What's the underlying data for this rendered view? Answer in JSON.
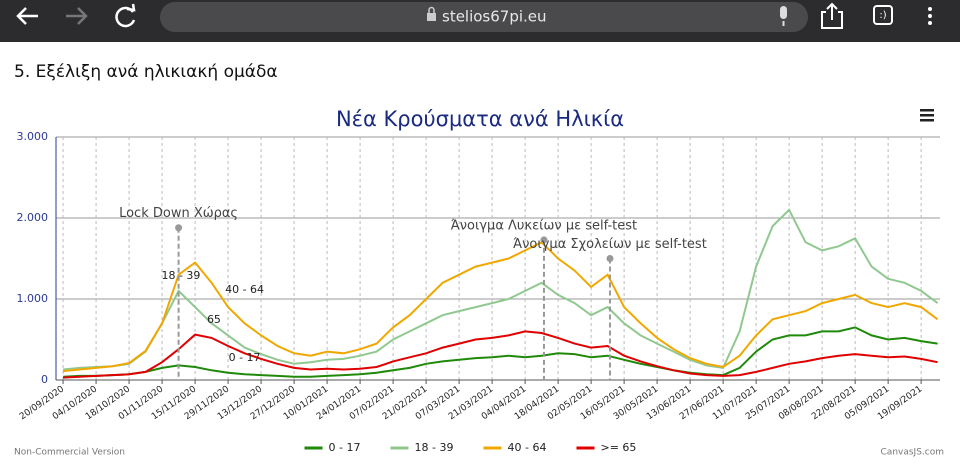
{
  "browser": {
    "url": "stelios67pi.eu"
  },
  "section_heading": "5. Εξέλιξη ανά ηλικιακή ομάδα",
  "chart_data": {
    "type": "line",
    "title": "Νέα Κρούσματα ανά Ηλικία",
    "x": [
      "20/09/2020",
      "27/09/2020",
      "04/10/2020",
      "11/10/2020",
      "18/10/2020",
      "25/10/2020",
      "01/11/2020",
      "08/11/2020",
      "15/11/2020",
      "22/11/2020",
      "29/11/2020",
      "06/12/2020",
      "13/12/2020",
      "20/12/2020",
      "27/12/2020",
      "03/01/2021",
      "10/01/2021",
      "17/01/2021",
      "24/01/2021",
      "31/01/2021",
      "07/02/2021",
      "14/02/2021",
      "21/02/2021",
      "28/02/2021",
      "07/03/2021",
      "14/03/2021",
      "21/03/2021",
      "28/03/2021",
      "04/04/2021",
      "11/04/2021",
      "18/04/2021",
      "25/04/2021",
      "02/05/2021",
      "09/05/2021",
      "16/05/2021",
      "23/05/2021",
      "30/05/2021",
      "06/06/2021",
      "13/06/2021",
      "20/06/2021",
      "27/06/2021",
      "04/07/2021",
      "11/07/2021",
      "18/07/2021",
      "25/07/2021",
      "01/08/2021",
      "08/08/2021",
      "15/08/2021",
      "22/08/2021",
      "29/08/2021",
      "05/09/2021",
      "12/09/2021",
      "19/09/2021",
      "26/09/2021"
    ],
    "series": [
      {
        "name": "0 - 17",
        "color": "#1f8a0a",
        "values": [
          40,
          50,
          50,
          60,
          70,
          100,
          150,
          180,
          160,
          120,
          90,
          70,
          60,
          50,
          40,
          40,
          50,
          60,
          70,
          90,
          120,
          150,
          200,
          230,
          250,
          270,
          280,
          300,
          280,
          300,
          330,
          320,
          280,
          300,
          250,
          200,
          160,
          120,
          90,
          70,
          60,
          150,
          350,
          500,
          550,
          550,
          600,
          600,
          650,
          550,
          500,
          520,
          480,
          450
        ]
      },
      {
        "name": "18 - 39",
        "color": "#90c890",
        "values": [
          130,
          150,
          160,
          170,
          200,
          350,
          700,
          1100,
          900,
          700,
          550,
          400,
          320,
          250,
          200,
          220,
          250,
          260,
          300,
          350,
          500,
          600,
          700,
          800,
          850,
          900,
          950,
          1000,
          1100,
          1200,
          1050,
          950,
          800,
          900,
          700,
          550,
          450,
          350,
          250,
          180,
          150,
          600,
          1400,
          1900,
          2100,
          1700,
          1600,
          1650,
          1750,
          1400,
          1250,
          1200,
          1100,
          950
        ]
      },
      {
        "name": "40 - 64",
        "color": "#f0a800",
        "values": [
          110,
          130,
          150,
          170,
          210,
          360,
          700,
          1300,
          1450,
          1200,
          900,
          700,
          550,
          420,
          330,
          300,
          350,
          330,
          380,
          450,
          650,
          800,
          1000,
          1200,
          1300,
          1400,
          1450,
          1500,
          1600,
          1700,
          1500,
          1350,
          1150,
          1300,
          900,
          700,
          520,
          380,
          270,
          200,
          160,
          300,
          550,
          750,
          800,
          850,
          950,
          1000,
          1050,
          950,
          900,
          950,
          900,
          750
        ]
      },
      {
        "name": ">= 65",
        "color": "#e00000",
        "values": [
          30,
          40,
          50,
          60,
          70,
          100,
          220,
          380,
          560,
          520,
          420,
          330,
          260,
          200,
          150,
          130,
          140,
          130,
          140,
          160,
          230,
          280,
          330,
          400,
          450,
          500,
          520,
          550,
          600,
          580,
          520,
          450,
          400,
          420,
          300,
          230,
          170,
          120,
          80,
          60,
          50,
          60,
          100,
          150,
          200,
          230,
          270,
          300,
          320,
          300,
          280,
          290,
          260,
          220
        ]
      }
    ],
    "xlim": [
      "17/09/2020",
      "27/09/2021"
    ],
    "xticks": [
      "20/09/2020",
      "04/10/2020",
      "18/10/2020",
      "01/11/2020",
      "15/11/2020",
      "29/11/2020",
      "13/12/2020",
      "27/12/2020",
      "10/01/2021",
      "24/01/2021",
      "07/02/2021",
      "21/02/2021",
      "07/03/2021",
      "21/03/2021",
      "04/04/2021",
      "18/04/2021",
      "02/05/2021",
      "16/05/2021",
      "30/05/2021",
      "13/06/2021",
      "27/06/2021",
      "11/07/2021",
      "25/07/2021",
      "08/08/2021",
      "22/08/2021",
      "05/09/2021",
      "19/09/2021"
    ],
    "ylim": [
      0,
      3000
    ],
    "yticks": [
      0,
      {
        "value": 1000,
        "label": "1.000"
      },
      {
        "value": 2000,
        "label": "2.000"
      },
      {
        "value": 3000,
        "label": "3.000"
      }
    ],
    "grid": true,
    "annotations": [
      {
        "label": "Lock Down Χώρας",
        "x": "08/11/2020",
        "y": 1880
      },
      {
        "label": "Άνοιγμα Λυκείων με self-test",
        "x": "12/04/2021",
        "y": 1730
      },
      {
        "label": "Άνοιγμα Σχολείων με self-test",
        "x": "10/05/2021",
        "y": 1500
      }
    ],
    "point_labels": [
      {
        "label": "18 - 39",
        "x": "09/11/2020",
        "y": 1284
      },
      {
        "label": "40 - 64",
        "x": "06/12/2020",
        "y": 1111
      },
      {
        "label": "65",
        "x": "23/11/2020",
        "y": 741
      },
      {
        "label": "0 - 17",
        "x": "06/12/2020",
        "y": 272
      }
    ],
    "legend": "bottom"
  },
  "footer": {
    "left": "Non-Commercial Version",
    "right": "CanvasJS.com"
  }
}
